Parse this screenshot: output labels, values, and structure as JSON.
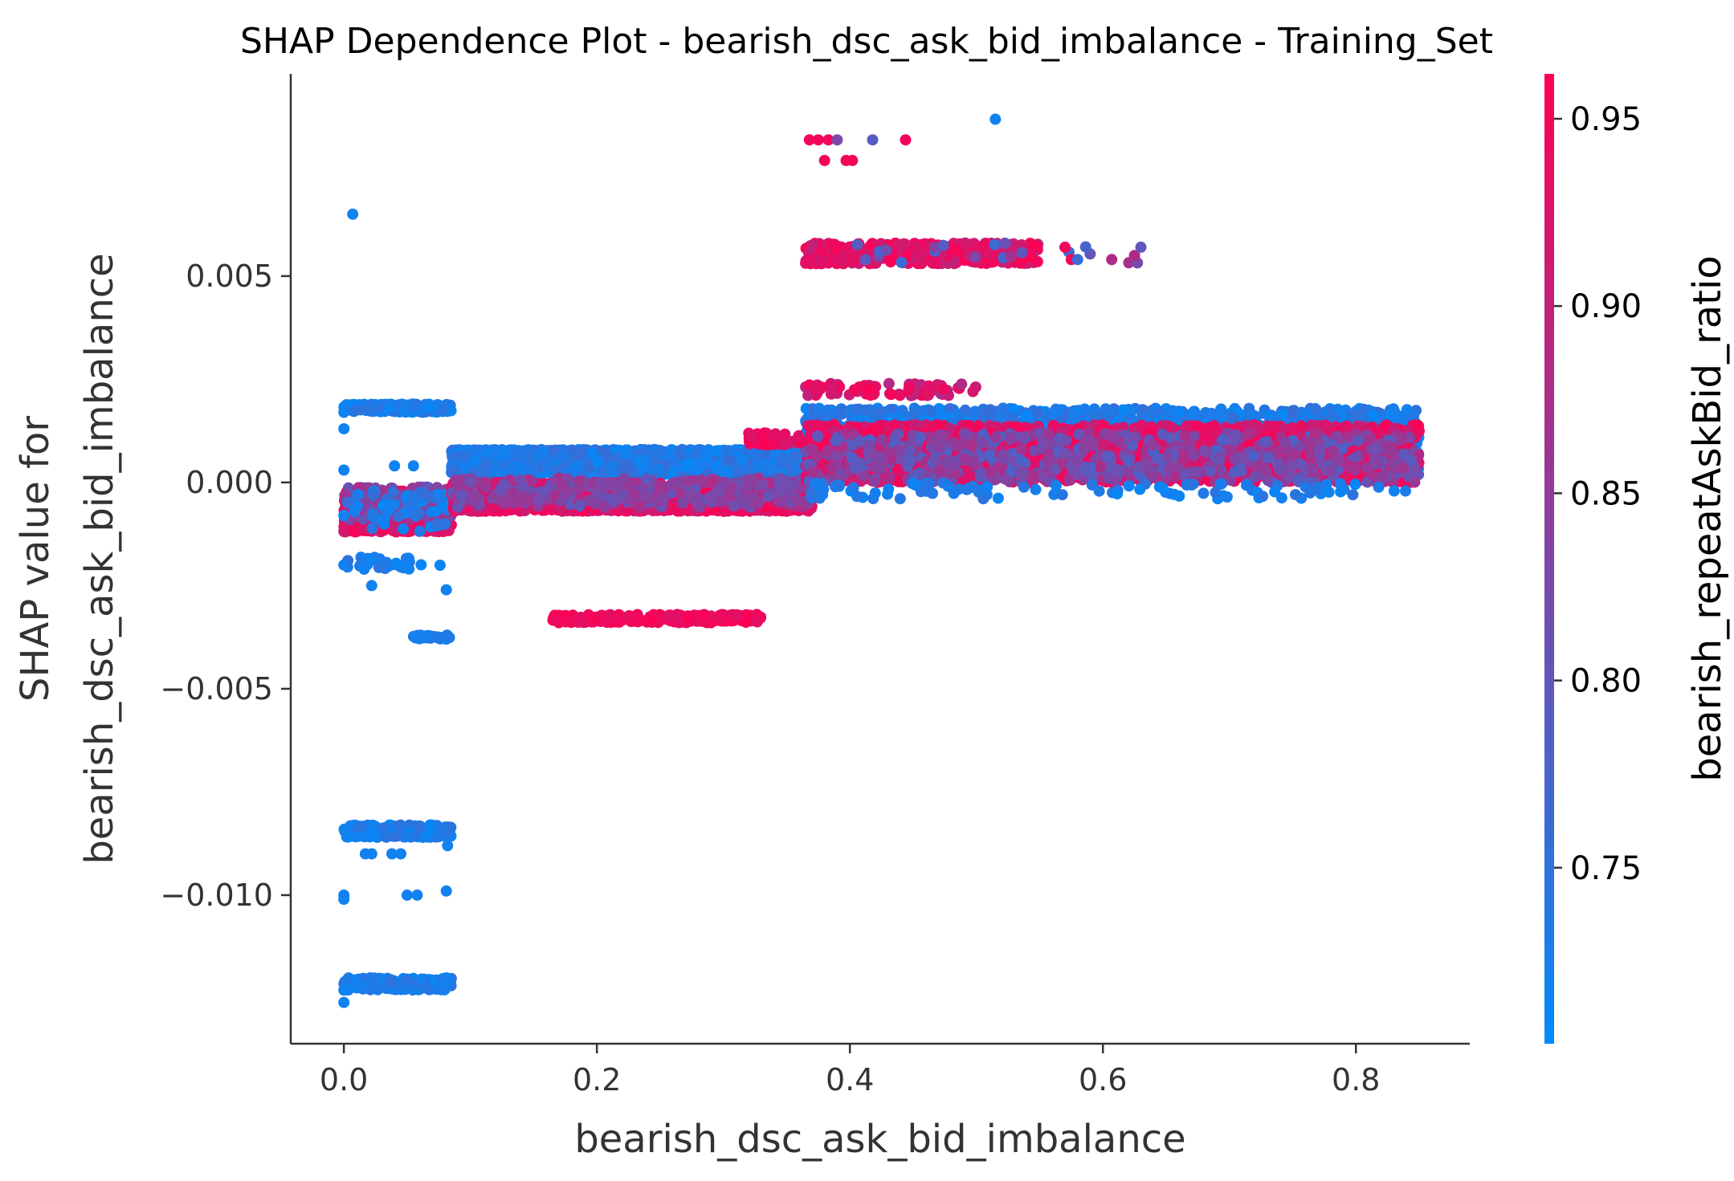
{
  "chart_data": {
    "type": "scatter",
    "title": "SHAP Dependence Plot - bearish_dsc_ask_bid_imbalance - Training_Set",
    "xlabel": "bearish_dsc_ask_bid_imbalance",
    "ylabel_lines": [
      "SHAP value for",
      "bearish_dsc_ask_bid_imbalance"
    ],
    "xlim": [
      -0.042,
      0.89
    ],
    "ylim": [
      -0.0136,
      0.0099
    ],
    "x_ticks": [
      0.0,
      0.2,
      0.4,
      0.6,
      0.8
    ],
    "x_tick_labels": [
      "0.0",
      "0.2",
      "0.4",
      "0.6",
      "0.8"
    ],
    "y_ticks": [
      0.005,
      0.0,
      -0.005,
      -0.01
    ],
    "y_tick_labels": [
      "0.005",
      "0.000",
      "−0.005",
      "−0.010"
    ],
    "colorbar": {
      "label": "bearish_repeatAskBid_ratio",
      "range": [
        0.703,
        0.962
      ],
      "ticks": [
        0.75,
        0.8,
        0.85,
        0.9,
        0.95
      ],
      "tick_labels": [
        "0.75",
        "0.80",
        "0.85",
        "0.90",
        "0.95"
      ],
      "color_low": "#008bfb",
      "color_high": "#ff0052"
    },
    "point_groups": [
      {
        "x": [
          0.0,
          0.085
        ],
        "y": [
          -0.0012,
          -0.0002
        ],
        "c": [
          0.9,
          0.96
        ],
        "n": 700
      },
      {
        "x": [
          0.0,
          0.085
        ],
        "y": [
          -0.0009,
          -0.0001
        ],
        "c": [
          0.8,
          0.88
        ],
        "n": 120
      },
      {
        "x": [
          0.0,
          0.085
        ],
        "y": [
          -0.0012,
          -0.0002
        ],
        "c": [
          0.71,
          0.76
        ],
        "n": 60
      },
      {
        "x": [
          0.0,
          0.085
        ],
        "y": [
          0.0017,
          0.0019
        ],
        "c": [
          0.71,
          0.75
        ],
        "n": 160
      },
      {
        "x": [
          0.0,
          0.085
        ],
        "y": [
          -0.0021,
          -0.0018
        ],
        "c": [
          0.71,
          0.75
        ],
        "n": 30
      },
      {
        "x": [
          0.055,
          0.085
        ],
        "y": [
          -0.0038,
          -0.0037
        ],
        "c": [
          0.71,
          0.75
        ],
        "n": 40
      },
      {
        "x": [
          0.0,
          0.085
        ],
        "y": [
          -0.0086,
          -0.0083
        ],
        "c": [
          0.71,
          0.75
        ],
        "n": 240
      },
      {
        "x": [
          0.0,
          0.085
        ],
        "y": [
          -0.0123,
          -0.012
        ],
        "c": [
          0.71,
          0.75
        ],
        "n": 160
      },
      {
        "x": [
          0.085,
          0.37
        ],
        "y": [
          0.0002,
          0.0008
        ],
        "c": [
          0.71,
          0.76
        ],
        "n": 2200
      },
      {
        "x": [
          0.085,
          0.37
        ],
        "y": [
          -0.0007,
          0.0
        ],
        "c": [
          0.9,
          0.96
        ],
        "n": 2000
      },
      {
        "x": [
          0.085,
          0.37
        ],
        "y": [
          -0.0006,
          0.0001
        ],
        "c": [
          0.8,
          0.88
        ],
        "n": 300
      },
      {
        "x": [
          0.165,
          0.33
        ],
        "y": [
          -0.0034,
          -0.0032
        ],
        "c": [
          0.93,
          0.96
        ],
        "n": 240
      },
      {
        "x": [
          0.32,
          0.37
        ],
        "y": [
          0.0009,
          0.0012
        ],
        "c": [
          0.92,
          0.96
        ],
        "n": 60
      },
      {
        "x": [
          0.365,
          0.85
        ],
        "y": [
          0.0003,
          0.0018
        ],
        "c": [
          0.71,
          0.76
        ],
        "n": 2000
      },
      {
        "x": [
          0.365,
          0.85
        ],
        "y": [
          0.0,
          0.0014
        ],
        "c": [
          0.9,
          0.96
        ],
        "n": 1800
      },
      {
        "x": [
          0.365,
          0.85
        ],
        "y": [
          0.0,
          0.0012
        ],
        "c": [
          0.78,
          0.88
        ],
        "n": 600
      },
      {
        "x": [
          0.365,
          0.85
        ],
        "y": [
          -0.0004,
          0.0
        ],
        "c": [
          0.71,
          0.75
        ],
        "n": 100
      },
      {
        "x": [
          0.365,
          0.5
        ],
        "y": [
          0.0021,
          0.0024
        ],
        "c": [
          0.88,
          0.96
        ],
        "n": 80
      },
      {
        "x": [
          0.365,
          0.55
        ],
        "y": [
          0.0053,
          0.0058
        ],
        "c": [
          0.9,
          0.96
        ],
        "n": 500
      },
      {
        "x": [
          0.37,
          0.63
        ],
        "y": [
          0.0053,
          0.0058
        ],
        "c": [
          0.76,
          0.88
        ],
        "n": 20
      }
    ],
    "points": [
      {
        "x": 0.007,
        "y": 0.0065,
        "c": 0.72
      },
      {
        "x": 0.515,
        "y": 0.0088,
        "c": 0.72
      },
      {
        "x": 0.368,
        "y": 0.0083,
        "c": 0.95
      },
      {
        "x": 0.375,
        "y": 0.0083,
        "c": 0.95
      },
      {
        "x": 0.383,
        "y": 0.0083,
        "c": 0.95
      },
      {
        "x": 0.39,
        "y": 0.0083,
        "c": 0.83
      },
      {
        "x": 0.418,
        "y": 0.0083,
        "c": 0.79
      },
      {
        "x": 0.444,
        "y": 0.0083,
        "c": 0.95
      },
      {
        "x": 0.38,
        "y": 0.0078,
        "c": 0.95
      },
      {
        "x": 0.397,
        "y": 0.0078,
        "c": 0.95
      },
      {
        "x": 0.402,
        "y": 0.0078,
        "c": 0.95
      },
      {
        "x": 0.57,
        "y": 0.0057,
        "c": 0.95
      },
      {
        "x": 0.575,
        "y": 0.0054,
        "c": 0.95
      },
      {
        "x": 0.58,
        "y": 0.0054,
        "c": 0.76
      },
      {
        "x": 0.607,
        "y": 0.0054,
        "c": 0.88
      },
      {
        "x": 0.625,
        "y": 0.0055,
        "c": 0.88
      },
      {
        "x": 0.63,
        "y": 0.0057,
        "c": 0.8
      },
      {
        "x": 0.0,
        "y": -0.002,
        "c": 0.72
      },
      {
        "x": 0.0,
        "y": -0.01,
        "c": 0.72
      },
      {
        "x": 0.0,
        "y": -0.0101,
        "c": 0.72
      },
      {
        "x": 0.0,
        "y": -0.0123,
        "c": 0.72
      },
      {
        "x": 0.0,
        "y": -0.0126,
        "c": 0.72
      },
      {
        "x": 0.016,
        "y": -0.0021,
        "c": 0.72
      },
      {
        "x": 0.017,
        "y": -0.009,
        "c": 0.72
      },
      {
        "x": 0.022,
        "y": -0.009,
        "c": 0.72
      },
      {
        "x": 0.022,
        "y": -0.0025,
        "c": 0.72
      },
      {
        "x": 0.038,
        "y": -0.009,
        "c": 0.72
      },
      {
        "x": 0.045,
        "y": -0.009,
        "c": 0.72
      },
      {
        "x": 0.05,
        "y": -0.01,
        "c": 0.72
      },
      {
        "x": 0.058,
        "y": -0.01,
        "c": 0.72
      },
      {
        "x": 0.081,
        "y": -0.0099,
        "c": 0.72
      },
      {
        "x": 0.081,
        "y": -0.0026,
        "c": 0.72
      },
      {
        "x": 0.082,
        "y": -0.0088,
        "c": 0.72
      },
      {
        "x": 0.0,
        "y": 0.0003,
        "c": 0.72
      },
      {
        "x": 0.0,
        "y": 0.0017,
        "c": 0.72
      },
      {
        "x": 0.04,
        "y": 0.0004,
        "c": 0.72
      },
      {
        "x": 0.055,
        "y": 0.0004,
        "c": 0.72
      },
      {
        "x": 0.0,
        "y": 0.0013,
        "c": 0.72
      },
      {
        "x": 0.0,
        "y": -0.0008,
        "c": 0.72
      }
    ]
  }
}
